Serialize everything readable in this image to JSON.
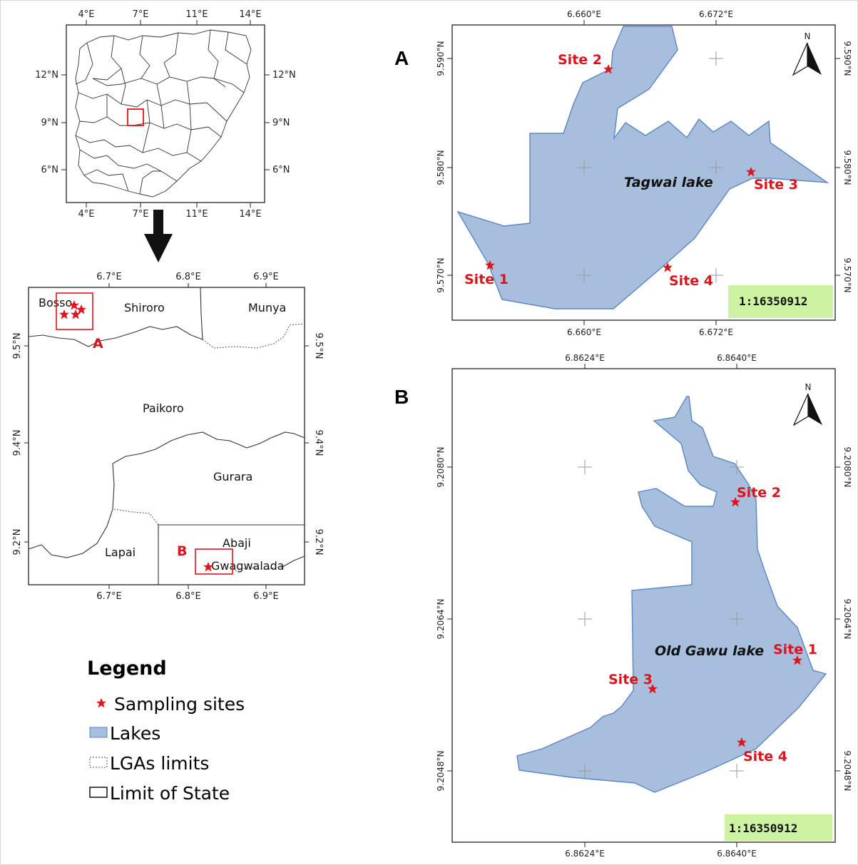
{
  "colors": {
    "lake": "#a7bedd",
    "lake_stroke": "#5b86c4",
    "site": "#e0141c",
    "scale_bg": "#cdf3a2"
  },
  "overview": {
    "lon_ticks": [
      "4°E",
      "7°E",
      "11°E",
      "14°E"
    ],
    "lat_ticks": [
      "12°N",
      "9°N",
      "6°N"
    ]
  },
  "study_area": {
    "lon_ticks": [
      "6.7°E",
      "6.8°E",
      "6.9°E"
    ],
    "lat_ticks": [
      "9.5°N",
      "9.4°N",
      "9.2°N"
    ],
    "lga_labels": [
      "Bosso",
      "Shiroro",
      "Munya",
      "Paikoro",
      "Gurara",
      "Lapai",
      "Abaji",
      "Gwagwalada"
    ],
    "box_labels": [
      "A",
      "B"
    ]
  },
  "legend": {
    "title": "Legend",
    "items": [
      "Sampling sites",
      "Lakes",
      "LGAs limits",
      "Limit of State"
    ]
  },
  "panel_a": {
    "label": "A",
    "lon_ticks": [
      "6.660°E",
      "6.672°E"
    ],
    "lat_ticks": [
      "9.590°N",
      "9.580°N",
      "9.570°N"
    ],
    "lake_name": "Tagwai lake",
    "sites": [
      "Site 1",
      "Site 2",
      "Site 3",
      "Site 4"
    ],
    "north": "N",
    "scale": "1:16350912"
  },
  "panel_b": {
    "label": "B",
    "lon_ticks": [
      "6.8624°E",
      "6.8640°E"
    ],
    "lat_ticks": [
      "9.2080°N",
      "9.2064°N",
      "9.2048°N"
    ],
    "lake_name": "Old Gawu lake",
    "sites": [
      "Site 1",
      "Site 2",
      "Site 3",
      "Site 4"
    ],
    "north": "N",
    "scale": "1:16350912"
  }
}
